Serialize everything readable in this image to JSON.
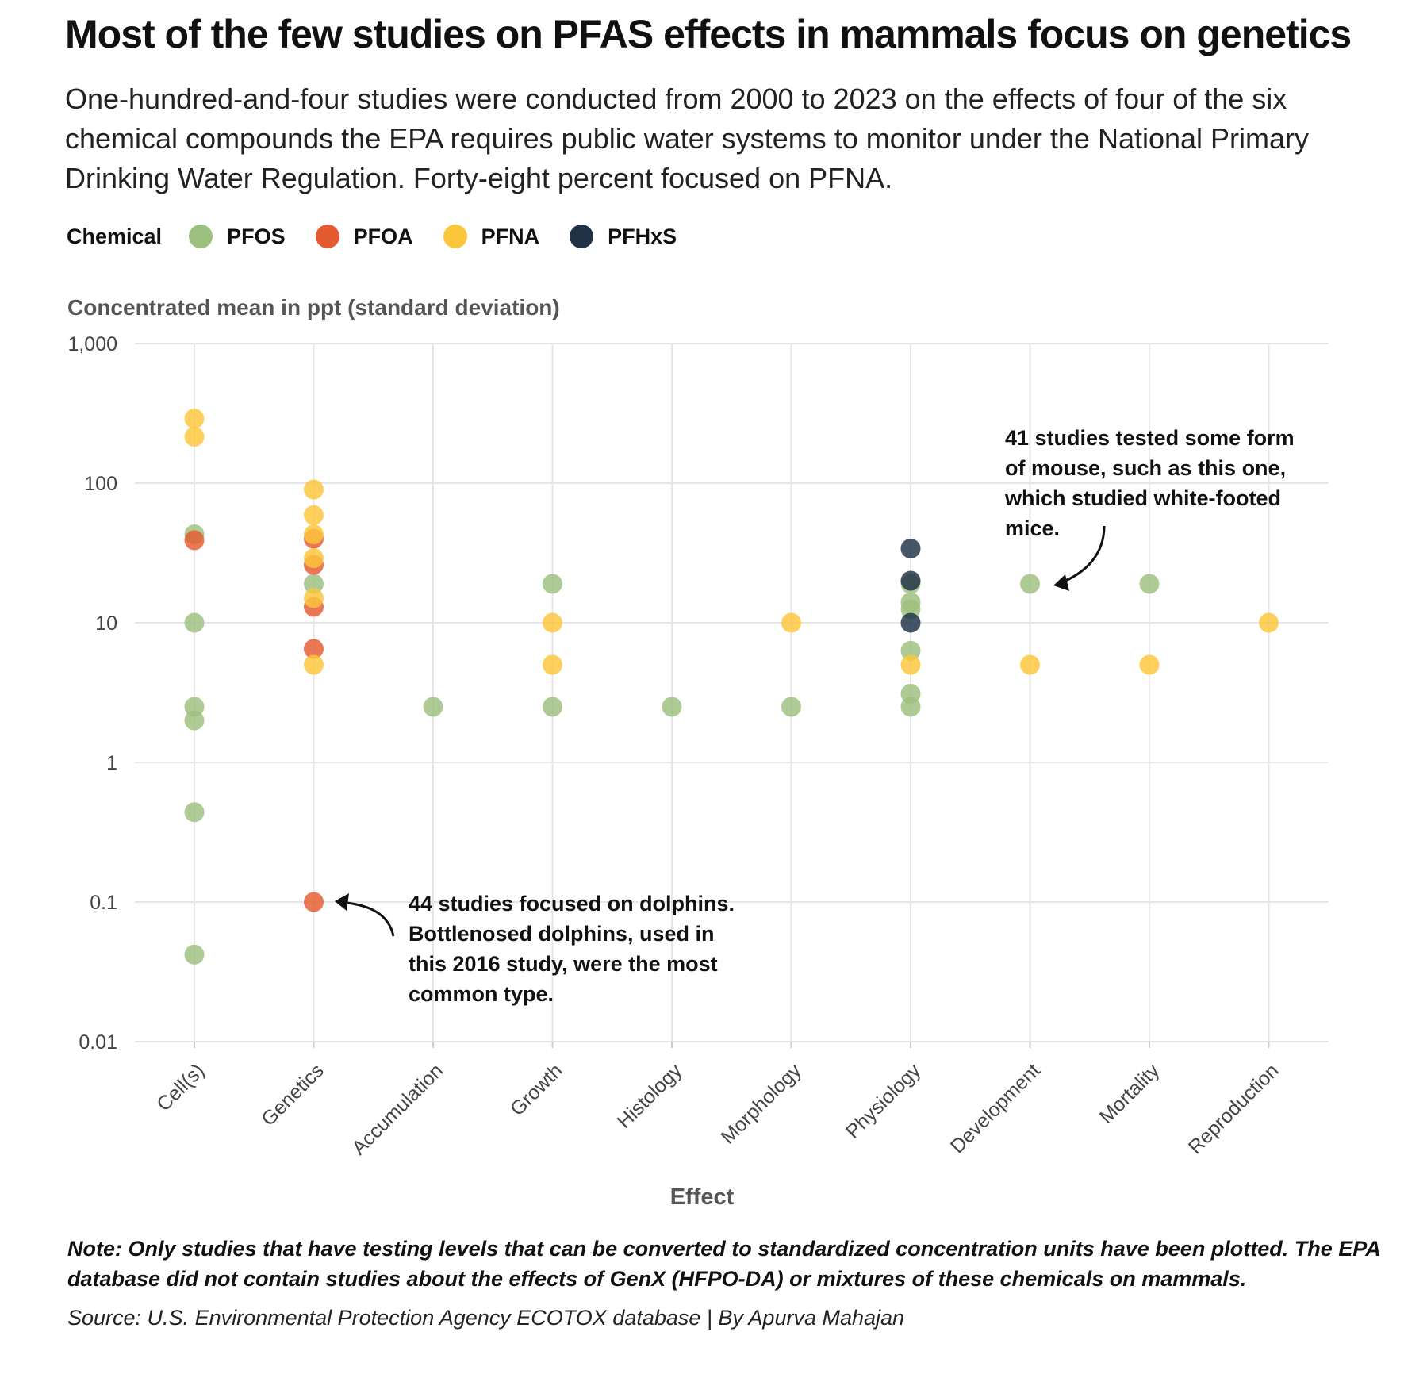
{
  "title": "Most of the few studies on PFAS effects in mammals focus on genetics",
  "subtitle": "One-hundred-and-four studies were conducted from 2000 to 2023 on the effects of four of the six chemical compounds the EPA requires public water systems to monitor under the National Primary Drinking Water Regulation. Forty-eight percent focused on PFNA.",
  "legend": {
    "title": "Chemical",
    "items": [
      {
        "label": "PFOS",
        "color": "#9cc07e"
      },
      {
        "label": "PFOA",
        "color": "#e55a30"
      },
      {
        "label": "PFNA",
        "color": "#fcc63b"
      },
      {
        "label": "PFHxS",
        "color": "#1f3144"
      }
    ]
  },
  "annotations": {
    "dolphins": "44 studies focused on dolphins. Bottlenosed dolphins, used in this 2016 study, were the most common type.",
    "mouse": "41 studies tested some form of mouse, such as this one, which studied white-footed mice."
  },
  "note": "Note: Only studies that have testing levels that can be converted to standardized concentration units have been plotted. The EPA database did not contain studies about the effects of GenX (HFPO-DA) or mixtures of these chemicals on mammals.",
  "source": "Source: U.S. Environmental Protection Agency ECOTOX database | By Apurva Mahajan",
  "chart_data": {
    "type": "scatter",
    "ylabel": "Concentrated mean in ppt (standard deviation)",
    "xlabel": "Effect",
    "y_scale": "log",
    "ylim": [
      0.01,
      1000
    ],
    "y_ticks": [
      {
        "value": 0.01,
        "label": "0.01"
      },
      {
        "value": 0.1,
        "label": "0.1"
      },
      {
        "value": 1,
        "label": "1"
      },
      {
        "value": 10,
        "label": "10"
      },
      {
        "value": 100,
        "label": "100"
      },
      {
        "value": 1000,
        "label": "1,000"
      }
    ],
    "grid": true,
    "legend_position": "top-left",
    "categories": [
      "Cell(s)",
      "Genetics",
      "Accumulation",
      "Growth",
      "Histology",
      "Morphology",
      "Physiology",
      "Development",
      "Mortality",
      "Reproduction"
    ],
    "colors": {
      "PFOS": "#9cc07e",
      "PFOA": "#e55a30",
      "PFNA": "#fcc63b",
      "PFHxS": "#1f3144"
    },
    "series": [
      {
        "name": "PFOS",
        "points": [
          {
            "x": "Cell(s)",
            "y": 43
          },
          {
            "x": "Cell(s)",
            "y": 10
          },
          {
            "x": "Cell(s)",
            "y": 2.5
          },
          {
            "x": "Cell(s)",
            "y": 2
          },
          {
            "x": "Cell(s)",
            "y": 0.44
          },
          {
            "x": "Cell(s)",
            "y": 0.042
          },
          {
            "x": "Genetics",
            "y": 19
          },
          {
            "x": "Accumulation",
            "y": 2.5
          },
          {
            "x": "Growth",
            "y": 19
          },
          {
            "x": "Growth",
            "y": 2.5
          },
          {
            "x": "Histology",
            "y": 2.5
          },
          {
            "x": "Morphology",
            "y": 2.5
          },
          {
            "x": "Physiology",
            "y": 19
          },
          {
            "x": "Physiology",
            "y": 14
          },
          {
            "x": "Physiology",
            "y": 12.5
          },
          {
            "x": "Physiology",
            "y": 6.3
          },
          {
            "x": "Physiology",
            "y": 3.1
          },
          {
            "x": "Physiology",
            "y": 2.5
          },
          {
            "x": "Development",
            "y": 19
          },
          {
            "x": "Mortality",
            "y": 19
          }
        ]
      },
      {
        "name": "PFOA",
        "points": [
          {
            "x": "Cell(s)",
            "y": 39
          },
          {
            "x": "Genetics",
            "y": 40
          },
          {
            "x": "Genetics",
            "y": 26
          },
          {
            "x": "Genetics",
            "y": 13
          },
          {
            "x": "Genetics",
            "y": 6.5
          },
          {
            "x": "Genetics",
            "y": 0.1
          }
        ]
      },
      {
        "name": "PFNA",
        "points": [
          {
            "x": "Cell(s)",
            "y": 290
          },
          {
            "x": "Cell(s)",
            "y": 215
          },
          {
            "x": "Genetics",
            "y": 90
          },
          {
            "x": "Genetics",
            "y": 59
          },
          {
            "x": "Genetics",
            "y": 43
          },
          {
            "x": "Genetics",
            "y": 29
          },
          {
            "x": "Genetics",
            "y": 15
          },
          {
            "x": "Genetics",
            "y": 5
          },
          {
            "x": "Growth",
            "y": 10
          },
          {
            "x": "Growth",
            "y": 5
          },
          {
            "x": "Morphology",
            "y": 10
          },
          {
            "x": "Physiology",
            "y": 5
          },
          {
            "x": "Development",
            "y": 5
          },
          {
            "x": "Mortality",
            "y": 5
          },
          {
            "x": "Reproduction",
            "y": 10
          }
        ]
      },
      {
        "name": "PFHxS",
        "points": [
          {
            "x": "Physiology",
            "y": 34
          },
          {
            "x": "Physiology",
            "y": 20
          },
          {
            "x": "Physiology",
            "y": 10
          }
        ]
      }
    ]
  }
}
